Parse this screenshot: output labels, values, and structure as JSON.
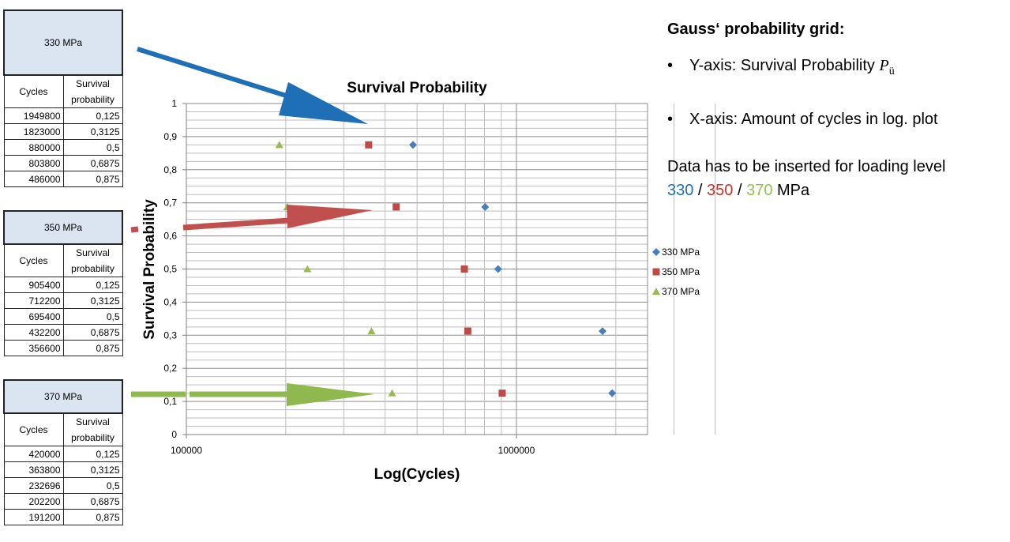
{
  "tables": [
    {
      "header": "330 MPa",
      "col1": "Cycles",
      "col2a": "Survival",
      "col2b": "probability",
      "rows": [
        [
          "1949800",
          "0,125"
        ],
        [
          "1823000",
          "0,3125"
        ],
        [
          "880000",
          "0,5"
        ],
        [
          "803800",
          "0,6875"
        ],
        [
          "486000",
          "0,875"
        ]
      ]
    },
    {
      "header": "350 MPa",
      "col1": "Cycles",
      "col2a": "Survival",
      "col2b": "probability",
      "rows": [
        [
          "905400",
          "0,125"
        ],
        [
          "712200",
          "0,3125"
        ],
        [
          "695400",
          "0,5"
        ],
        [
          "432200",
          "0,6875"
        ],
        [
          "356600",
          "0,875"
        ]
      ]
    },
    {
      "header": "370 MPa",
      "col1": "Cycles",
      "col2a": "Survival",
      "col2b": "probability",
      "rows": [
        [
          "420000",
          "0,125"
        ],
        [
          "363800",
          "0,3125"
        ],
        [
          "232696",
          "0,5"
        ],
        [
          "202200",
          "0,6875"
        ],
        [
          "191200",
          "0,875"
        ]
      ]
    }
  ],
  "chart_data": {
    "type": "scatter",
    "title": "Survival Probability",
    "xlabel": "Log(Cycles)",
    "ylabel": "Survival Probability",
    "x_scale": "log",
    "xlim": [
      100000,
      4000000
    ],
    "ylim": [
      0,
      1
    ],
    "x_tick_labels": [
      "100000",
      "1000000"
    ],
    "y_tick_labels": [
      "0",
      "0,1",
      "0,2",
      "0,3",
      "0,4",
      "0,5",
      "0,6",
      "0,7",
      "0,8",
      "0,9",
      "1"
    ],
    "grid": true,
    "legend_position": "right",
    "series": [
      {
        "name": "330 MPa",
        "marker": "diamond",
        "color": "#4a7ebb",
        "points": [
          {
            "x": 1949800,
            "y": 0.125
          },
          {
            "x": 1823000,
            "y": 0.3125
          },
          {
            "x": 880000,
            "y": 0.5
          },
          {
            "x": 803800,
            "y": 0.6875
          },
          {
            "x": 486000,
            "y": 0.875
          }
        ]
      },
      {
        "name": "350 MPa",
        "marker": "square",
        "color": "#be4b48",
        "points": [
          {
            "x": 905400,
            "y": 0.125
          },
          {
            "x": 712200,
            "y": 0.3125
          },
          {
            "x": 695400,
            "y": 0.5
          },
          {
            "x": 432200,
            "y": 0.6875
          },
          {
            "x": 356600,
            "y": 0.875
          }
        ]
      },
      {
        "name": "370 MPa",
        "marker": "triangle",
        "color": "#98b954",
        "points": [
          {
            "x": 420000,
            "y": 0.125
          },
          {
            "x": 363800,
            "y": 0.3125
          },
          {
            "x": 232696,
            "y": 0.5
          },
          {
            "x": 202200,
            "y": 0.6875
          },
          {
            "x": 191200,
            "y": 0.875
          }
        ]
      }
    ]
  },
  "arrow_colors": {
    "blue": "#1f6fb6",
    "red": "#c0504d",
    "green": "#8fb84e"
  },
  "side": {
    "title": "Gauss‘ probability grid:",
    "bullet1": "Y-axis: Survival Probability",
    "pu_symbol": "P",
    "pu_sub": "ü",
    "bullet2": "X-axis: Amount of cycles in log. plot",
    "data_text": "Data has to be inserted for loading level",
    "level1": "330",
    "sep1": " / ",
    "level2": "350",
    "sep2": " / ",
    "level3": "370",
    "unit": " MPa",
    "bullet_char": "•"
  }
}
